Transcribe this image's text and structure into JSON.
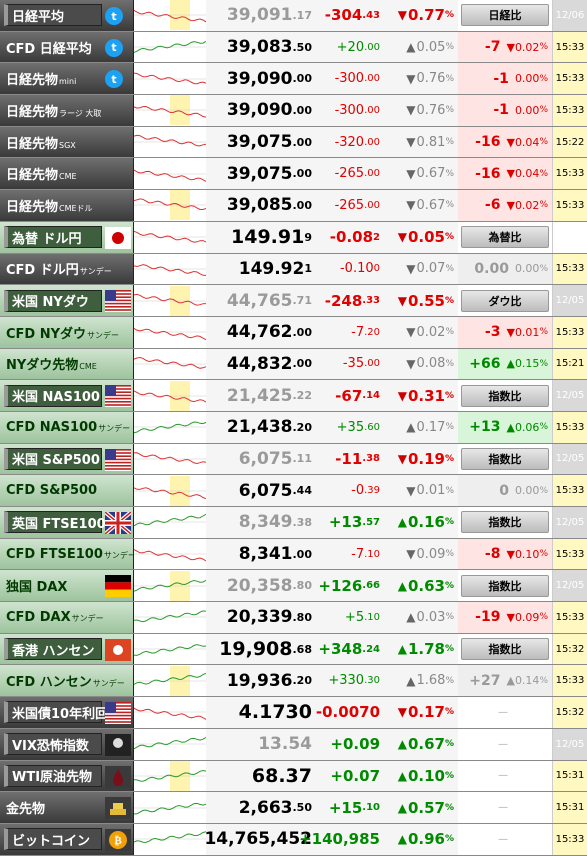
{
  "rows": [
    {
      "name": "日経平均",
      "sub": "",
      "icon": "twitter",
      "flag": "japan",
      "price": "39,091",
      "dec": ".17",
      "chg": "-304",
      "chgdec": ".43",
      "pct": "0.77",
      "dir": "down",
      "cmp": "日経比",
      "cmpType": "button",
      "time": "12/06",
      "style": "sel dim bigchg",
      "chgColor": "red",
      "pctColor": "red"
    },
    {
      "name": "CFD 日経平均",
      "sub": "",
      "icon": "twitter",
      "flag": "",
      "price": "39,083",
      "dec": ".50",
      "chg": "+20",
      "chgdec": ".00",
      "pct": "0.05",
      "dir": "up",
      "cmp": "-7",
      "cmpPct": "0.02",
      "cmpDir": "down",
      "cmpType": "pink",
      "time": "15:33",
      "chgColor": "green",
      "pctColor": "gray"
    },
    {
      "name": "日経先物",
      "sub": "mini",
      "icon": "twitter",
      "flag": "",
      "price": "39,090",
      "dec": ".00",
      "chg": "-300",
      "chgdec": ".00",
      "pct": "0.76",
      "dir": "down",
      "cmp": "-1",
      "cmpPct": "0.00",
      "cmpDir": "none",
      "cmpType": "pink",
      "time": "15:33",
      "chgColor": "red",
      "pctColor": "gray"
    },
    {
      "name": "日経先物",
      "sub": "ラージ 大取",
      "icon": "",
      "flag": "",
      "price": "39,090",
      "dec": ".00",
      "chg": "-300",
      "chgdec": ".00",
      "pct": "0.76",
      "dir": "down",
      "cmp": "-1",
      "cmpPct": "0.00",
      "cmpDir": "none",
      "cmpType": "pink",
      "time": "15:33",
      "chgColor": "red",
      "pctColor": "gray"
    },
    {
      "name": "日経先物",
      "sub": "SGX",
      "icon": "",
      "flag": "",
      "price": "39,075",
      "dec": ".00",
      "chg": "-320",
      "chgdec": ".00",
      "pct": "0.81",
      "dir": "down",
      "cmp": "-16",
      "cmpPct": "0.04",
      "cmpDir": "down",
      "cmpType": "pink",
      "time": "15:22",
      "chgColor": "red",
      "pctColor": "gray"
    },
    {
      "name": "日経先物",
      "sub": "CME",
      "icon": "",
      "flag": "",
      "price": "39,075",
      "dec": ".00",
      "chg": "-265",
      "chgdec": ".00",
      "pct": "0.67",
      "dir": "down",
      "cmp": "-16",
      "cmpPct": "0.04",
      "cmpDir": "down",
      "cmpType": "pink",
      "time": "15:33",
      "chgColor": "red",
      "pctColor": "gray"
    },
    {
      "name": "日経先物",
      "sub": "CMEドル",
      "icon": "",
      "flag": "",
      "price": "39,085",
      "dec": ".00",
      "chg": "-265",
      "chgdec": ".00",
      "pct": "0.67",
      "dir": "down",
      "cmp": "-6",
      "cmpPct": "0.02",
      "cmpDir": "down",
      "cmpType": "pink",
      "time": "15:33",
      "chgColor": "red",
      "pctColor": "gray"
    },
    {
      "name": "為替 ドル円",
      "sub": "",
      "icon": "",
      "flag": "japan",
      "price": "149.91",
      "dec": "9",
      "chg": "-0.08",
      "chgdec": "2",
      "pct": "0.05",
      "dir": "down",
      "cmp": "為替比",
      "cmpType": "button",
      "time": "",
      "style": "sel main big bigchg",
      "chgColor": "red",
      "pctColor": "red"
    },
    {
      "name": "CFD ドル円",
      "sub": "サンデー",
      "icon": "",
      "flag": "",
      "price": "149.92",
      "dec": "1",
      "chg": "-0.10",
      "chgdec": "0",
      "pct": "0.07",
      "dir": "down",
      "cmp": "0.00",
      "cmpPct": "0.00",
      "cmpDir": "none",
      "cmpType": "grey",
      "time": "15:33",
      "chgColor": "red",
      "pctColor": "gray"
    },
    {
      "name": "米国 NYダウ",
      "sub": "",
      "icon": "",
      "flag": "us",
      "price": "44,765",
      "dec": ".71",
      "chg": "-248",
      "chgdec": ".33",
      "pct": "0.55",
      "dir": "down",
      "cmp": "ダウ比",
      "cmpType": "button",
      "time": "12/05",
      "style": "sel main dim bigchg",
      "chgColor": "red",
      "pctColor": "red"
    },
    {
      "name": "CFD NYダウ",
      "sub": "サンデー",
      "icon": "",
      "flag": "",
      "price": "44,762",
      "dec": ".00",
      "chg": "-7",
      "chgdec": ".20",
      "pct": "0.02",
      "dir": "down",
      "cmp": "-3",
      "cmpPct": "0.01",
      "cmpDir": "down",
      "cmpType": "pink",
      "time": "15:33",
      "chgColor": "red",
      "pctColor": "gray",
      "style": "main"
    },
    {
      "name": "NYダウ先物",
      "sub": "CME",
      "icon": "",
      "flag": "",
      "price": "44,832",
      "dec": ".00",
      "chg": "-35",
      "chgdec": ".00",
      "pct": "0.08",
      "dir": "down",
      "cmp": "+66",
      "cmpPct": "0.15",
      "cmpDir": "up",
      "cmpType": "green",
      "time": "15:21",
      "chgColor": "red",
      "pctColor": "gray",
      "style": "main"
    },
    {
      "name": "米国 NAS100",
      "sub": "",
      "icon": "",
      "flag": "us",
      "price": "21,425",
      "dec": ".22",
      "chg": "-67",
      "chgdec": ".14",
      "pct": "0.31",
      "dir": "down",
      "cmp": "指数比",
      "cmpType": "button",
      "time": "12/05",
      "style": "sel main dim bigchg",
      "chgColor": "red",
      "pctColor": "red"
    },
    {
      "name": "CFD NAS100",
      "sub": "サンデー",
      "icon": "",
      "flag": "",
      "price": "21,438",
      "dec": ".20",
      "chg": "+35",
      "chgdec": ".60",
      "pct": "0.17",
      "dir": "up",
      "cmp": "+13",
      "cmpPct": "0.06",
      "cmpDir": "up",
      "cmpType": "green",
      "time": "15:33",
      "chgColor": "green",
      "pctColor": "gray",
      "style": "main"
    },
    {
      "name": "米国 S&P500",
      "sub": "",
      "icon": "",
      "flag": "us",
      "price": "6,075",
      "dec": ".11",
      "chg": "-11",
      "chgdec": ".38",
      "pct": "0.19",
      "dir": "down",
      "cmp": "指数比",
      "cmpType": "button",
      "time": "12/05",
      "style": "sel main dim bigchg",
      "chgColor": "red",
      "pctColor": "red"
    },
    {
      "name": "CFD S&P500",
      "sub": "",
      "icon": "",
      "flag": "",
      "price": "6,075",
      "dec": ".44",
      "chg": "-0",
      "chgdec": ".39",
      "pct": "0.01",
      "dir": "down",
      "cmp": "0",
      "cmpPct": "0.00",
      "cmpDir": "none",
      "cmpType": "grey",
      "time": "15:33",
      "chgColor": "red",
      "pctColor": "gray",
      "style": "main"
    },
    {
      "name": "英国 FTSE100",
      "sub": "",
      "icon": "",
      "flag": "uk",
      "price": "8,349",
      "dec": ".38",
      "chg": "+13",
      "chgdec": ".57",
      "pct": "0.16",
      "dir": "up",
      "cmp": "指数比",
      "cmpType": "button",
      "time": "12/05",
      "style": "sel main dim bigchg",
      "chgColor": "green",
      "pctColor": "green"
    },
    {
      "name": "CFD FTSE100",
      "sub": "サンデー",
      "icon": "",
      "flag": "",
      "price": "8,341",
      "dec": ".00",
      "chg": "-7",
      "chgdec": ".10",
      "pct": "0.09",
      "dir": "down",
      "cmp": "-8",
      "cmpPct": "0.10",
      "cmpDir": "down",
      "cmpType": "pink",
      "time": "15:33",
      "chgColor": "red",
      "pctColor": "gray",
      "style": "main"
    },
    {
      "name": "独国 DAX",
      "sub": "",
      "icon": "",
      "flag": "de",
      "price": "20,358",
      "dec": ".80",
      "chg": "+126",
      "chgdec": ".66",
      "pct": "0.63",
      "dir": "up",
      "cmp": "指数比",
      "cmpType": "button",
      "time": "12/05",
      "style": "main dim bigchg",
      "chgColor": "green",
      "pctColor": "green"
    },
    {
      "name": "CFD DAX",
      "sub": "サンデー",
      "icon": "",
      "flag": "",
      "price": "20,339",
      "dec": ".80",
      "chg": "+5",
      "chgdec": ".10",
      "pct": "0.03",
      "dir": "up",
      "cmp": "-19",
      "cmpPct": "0.09",
      "cmpDir": "down",
      "cmpType": "pink",
      "time": "15:33",
      "chgColor": "green",
      "pctColor": "gray",
      "style": "main"
    },
    {
      "name": "香港 ハンセン",
      "sub": "",
      "icon": "",
      "flag": "hk",
      "price": "19,908",
      "dec": ".68",
      "chg": "+348",
      "chgdec": ".24",
      "pct": "1.78",
      "dir": "up",
      "cmp": "指数比",
      "cmpType": "button",
      "time": "15:32",
      "style": "sel main big bigchg",
      "chgColor": "green",
      "pctColor": "green"
    },
    {
      "name": "CFD ハンセン",
      "sub": "サンデー",
      "icon": "",
      "flag": "",
      "price": "19,936",
      "dec": ".20",
      "chg": "+330",
      "chgdec": ".30",
      "pct": "1.68",
      "dir": "up",
      "cmp": "+27",
      "cmpPct": "0.14",
      "cmpDir": "up",
      "cmpType": "grey",
      "time": "15:33",
      "chgColor": "green",
      "pctColor": "gray",
      "style": "main"
    },
    {
      "name": "米国債10年利回り",
      "sub": "",
      "icon": "",
      "flag": "us",
      "price": "4.1730",
      "dec": "",
      "chg": "-0.0070",
      "chgdec": "",
      "pct": "0.17",
      "dir": "down",
      "cmp": "—",
      "cmpType": "dash",
      "time": "15:32",
      "style": "sel big bigchg",
      "chgColor": "red",
      "pctColor": "red"
    },
    {
      "name": "VIX恐怖指数",
      "sub": "",
      "icon": "",
      "flag": "reaper",
      "price": "13.54",
      "dec": "",
      "chg": "+0.09",
      "chgdec": "",
      "pct": "0.67",
      "dir": "up",
      "cmp": "—",
      "cmpType": "dash",
      "time": "12/05",
      "style": "sel dim bigchg",
      "chgColor": "green",
      "pctColor": "green"
    },
    {
      "name": "WTI原油先物",
      "sub": "",
      "icon": "",
      "flag": "oil",
      "price": "68.37",
      "dec": "",
      "chg": "+0.07",
      "chgdec": "",
      "pct": "0.10",
      "dir": "up",
      "cmp": "—",
      "cmpType": "dash",
      "time": "15:31",
      "style": "sel big bigchg",
      "chgColor": "green",
      "pctColor": "green"
    },
    {
      "name": "金先物",
      "sub": "",
      "icon": "",
      "flag": "gold",
      "price": "2,663",
      "dec": ".50",
      "chg": "+15",
      "chgdec": ".10",
      "pct": "0.57",
      "dir": "up",
      "cmp": "—",
      "cmpType": "dash",
      "time": "15:31",
      "style": "bigchg",
      "chgColor": "green",
      "pctColor": "green"
    },
    {
      "name": "ビットコイン",
      "sub": "",
      "icon": "",
      "flag": "btc",
      "price": "14,765,452",
      "dec": "",
      "chg": "+140,985",
      "chgdec": "",
      "pct": "0.96",
      "dir": "up",
      "cmp": "—",
      "cmpType": "dash",
      "time": "15:33",
      "style": "sel bigchg",
      "chgColor": "green",
      "pctColor": "green"
    }
  ]
}
